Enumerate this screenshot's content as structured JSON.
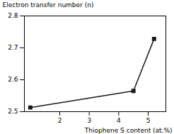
{
  "chart_data": {
    "type": "line",
    "x": [
      1.0,
      4.5,
      5.2
    ],
    "values": [
      2.513,
      2.565,
      2.728
    ],
    "xlabel": "Thiophene S content (at.%)",
    "ylabel": "Electron transfer number (n)",
    "xlim": [
      0.8,
      5.6
    ],
    "ylim": [
      2.5,
      2.8
    ],
    "xticks": [
      2,
      3,
      4,
      5
    ],
    "yticks": [
      2.5,
      2.6,
      2.7,
      2.8
    ],
    "color": "#1a1a1a",
    "marker": "square",
    "grid": false
  }
}
